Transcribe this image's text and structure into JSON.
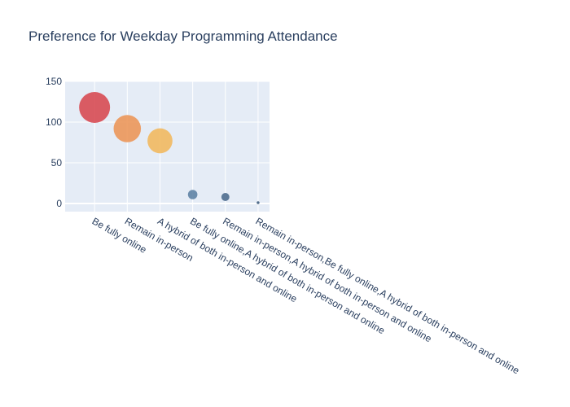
{
  "chart_data": {
    "type": "scatter",
    "title": "Preference for Weekday Programming Attendance",
    "xlabel": "",
    "ylabel": "",
    "categories": [
      "Be fully online",
      "Remain in-person",
      "A hybrid of both in-person and online",
      "Be fully online,A hybrid of both in-person and online",
      "Remain in-person,A hybrid of both in-person and online",
      "Remain in-person,Be fully online,A hybrid of both in-person and online"
    ],
    "values": [
      118,
      92,
      77,
      11,
      8,
      1
    ],
    "ylim": [
      -10,
      150
    ],
    "yticks": [
      0,
      50,
      100,
      150
    ],
    "grid": true,
    "legend": "none",
    "colors": [
      "#d7474e",
      "#ec9455",
      "#f1b75c",
      "#5b7fa3",
      "#4a6a8c",
      "#3b5a7c"
    ]
  }
}
